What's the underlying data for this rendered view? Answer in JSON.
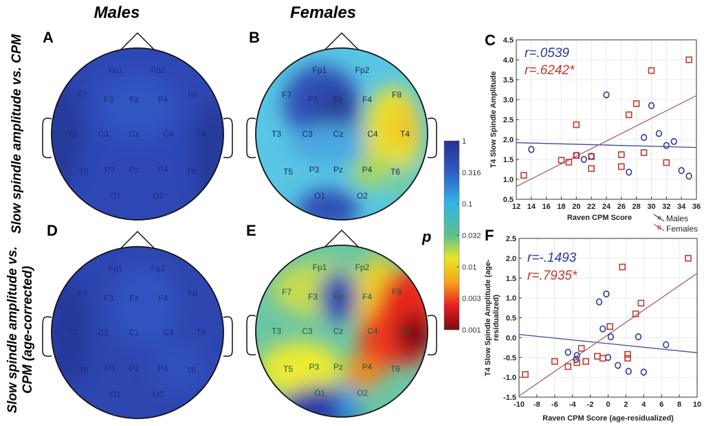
{
  "titles": {
    "males": "Males",
    "females": "Females"
  },
  "row_labels": {
    "top": "Slow spindle amplitude vs. CPM",
    "bottom_line1": "Slow spindle amplitude vs.",
    "bottom_line2": "CPM (age-corrected)"
  },
  "panel_letters": {
    "A": "A",
    "B": "B",
    "C": "C",
    "D": "D",
    "E": "E",
    "F": "F"
  },
  "electrodes": [
    "Fp1",
    "Fp2",
    "F7",
    "F3",
    "Fz",
    "F4",
    "F8",
    "T3",
    "C3",
    "Cz",
    "C4",
    "T4",
    "T5",
    "P3",
    "Pz",
    "P4",
    "T6",
    "O1",
    "O2"
  ],
  "colorbar": {
    "label": "p",
    "ticks": [
      "1",
      "0.316",
      "0.1",
      "0.032",
      "0.01",
      "0.003",
      "0.001"
    ],
    "colors": [
      "#2b2f8f",
      "#2f5fc4",
      "#33b5e5",
      "#5cc08c",
      "#e6e62a",
      "#f7a21b",
      "#e8211f",
      "#7a0a12"
    ]
  },
  "colors": {
    "males": "#2b3a9c",
    "females": "#c0392b",
    "female_line": "#b06060",
    "male_line": "#3a4a9a"
  },
  "legend": {
    "males": "Males",
    "females": "Females"
  },
  "chart_data": [
    {
      "type": "scatter",
      "panel": "C",
      "xlabel": "Raven CPM Score",
      "ylabel": "T4 Slow Spindle Amplitude",
      "xlim": [
        12,
        36
      ],
      "ylim": [
        0.5,
        4.5
      ],
      "xticks": [
        "12",
        "14",
        "16",
        "18",
        "20",
        "22",
        "24",
        "26",
        "28",
        "30",
        "32",
        "34",
        "36"
      ],
      "yticks": [
        "0.5",
        "1.0",
        "1.5",
        "2.0",
        "2.5",
        "3.0",
        "3.5",
        "4.0",
        "4.5"
      ],
      "grid": true,
      "legend_placement": "below-right",
      "annotations": [
        "r=.0539",
        "r=.6242*"
      ],
      "series": [
        {
          "name": "Males",
          "marker": "circle",
          "points": [
            [
              14,
              1.75
            ],
            [
              20,
              1.6
            ],
            [
              21,
              1.5
            ],
            [
              22,
              1.58
            ],
            [
              24,
              3.12
            ],
            [
              27,
              1.18
            ],
            [
              29,
              2.05
            ],
            [
              30,
              2.85
            ],
            [
              31,
              2.15
            ],
            [
              32,
              1.85
            ],
            [
              33,
              1.95
            ],
            [
              34,
              1.22
            ],
            [
              35,
              1.08
            ]
          ],
          "fit": [
            [
              12,
              1.92
            ],
            [
              36,
              1.8
            ]
          ]
        },
        {
          "name": "Females",
          "marker": "square",
          "points": [
            [
              13,
              1.1
            ],
            [
              18,
              1.48
            ],
            [
              19,
              1.43
            ],
            [
              20,
              2.37
            ],
            [
              20,
              1.6
            ],
            [
              22,
              1.57
            ],
            [
              22,
              1.27
            ],
            [
              26,
              1.62
            ],
            [
              26,
              1.32
            ],
            [
              27,
              2.62
            ],
            [
              28,
              2.9
            ],
            [
              29,
              1.67
            ],
            [
              30,
              3.73
            ],
            [
              32,
              1.42
            ],
            [
              35,
              4.0
            ]
          ],
          "fit": [
            [
              12,
              0.82
            ],
            [
              36,
              3.1
            ]
          ]
        }
      ]
    },
    {
      "type": "scatter",
      "panel": "F",
      "xlabel": "Raven CPM Score (age-residualized)",
      "ylabel_line1": "T4 Slow Spindle Amplitude (age-",
      "ylabel_line2": "residualized)",
      "xlim": [
        -10,
        10
      ],
      "ylim": [
        -1.5,
        2.5
      ],
      "xticks": [
        "-10",
        "-8",
        "-6",
        "-4",
        "-2",
        "0",
        "2",
        "4",
        "6",
        "8",
        "10"
      ],
      "yticks": [
        "-1.5",
        "-1.0",
        "-0.5",
        "0.0",
        "0.5",
        "1.0",
        "1.5",
        "2.0",
        "2.5"
      ],
      "grid": true,
      "annotations": [
        "r=-.1493",
        "r=.7935*"
      ],
      "series": [
        {
          "name": "Males",
          "marker": "circle",
          "points": [
            [
              -4.5,
              -0.37
            ],
            [
              -3.5,
              -0.45
            ],
            [
              -3.6,
              -0.55
            ],
            [
              -1,
              0.9
            ],
            [
              -0.2,
              1.1
            ],
            [
              -0.6,
              0.22
            ],
            [
              0.3,
              0.02
            ],
            [
              0,
              -0.5
            ],
            [
              1.1,
              -0.7
            ],
            [
              2.3,
              -0.85
            ],
            [
              3.4,
              0.02
            ],
            [
              4,
              -0.87
            ],
            [
              6.5,
              -0.18
            ]
          ],
          "fit": [
            [
              -10,
              0.08
            ],
            [
              10,
              -0.38
            ]
          ]
        },
        {
          "name": "Females",
          "marker": "square",
          "points": [
            [
              -9.3,
              -0.93
            ],
            [
              -6,
              -0.6
            ],
            [
              -4.5,
              -0.73
            ],
            [
              -3.5,
              -0.63
            ],
            [
              -3,
              -0.27
            ],
            [
              -2.5,
              -0.6
            ],
            [
              -1.2,
              -0.47
            ],
            [
              -0.6,
              -0.52
            ],
            [
              0.2,
              0.28
            ],
            [
              1.6,
              1.78
            ],
            [
              2.2,
              -0.42
            ],
            [
              2.2,
              -0.52
            ],
            [
              3.1,
              0.6
            ],
            [
              3.7,
              0.87
            ],
            [
              9,
              2.0
            ]
          ],
          "fit": [
            [
              -10,
              -1.47
            ],
            [
              10,
              1.62
            ]
          ]
        }
      ]
    }
  ]
}
